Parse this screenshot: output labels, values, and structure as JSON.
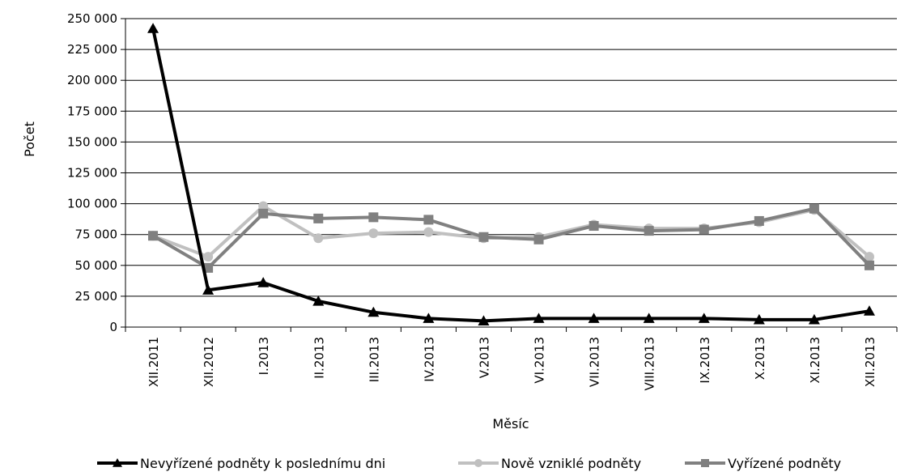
{
  "chart_data": {
    "type": "line",
    "xlabel": "Měsíc",
    "ylabel": "Počet",
    "ylim": [
      0,
      250000
    ],
    "y_ticks": [
      0,
      25000,
      50000,
      75000,
      100000,
      125000,
      150000,
      175000,
      200000,
      225000,
      250000
    ],
    "y_tick_labels": [
      "0",
      "25 000",
      "50 000",
      "75 000",
      "100 000",
      "125 000",
      "150 000",
      "175 000",
      "200 000",
      "225 000",
      "250 000"
    ],
    "grid": true,
    "legend": "bottom",
    "categories": [
      "XII.2011",
      "XII.2012",
      "I.2013",
      "II.2013",
      "III.2013",
      "IV.2013",
      "V.2013",
      "VI.2013",
      "VII.2013",
      "VIII.2013",
      "IX.2013",
      "X.2013",
      "XI.2013",
      "XII.2013"
    ],
    "series": [
      {
        "name": "Nevyřízené podněty k poslednímu dni",
        "color": "#000000",
        "marker": "triangle",
        "values": [
          242000,
          30000,
          36000,
          21000,
          12000,
          7000,
          5000,
          7000,
          7000,
          7000,
          7000,
          6000,
          6000,
          13000
        ]
      },
      {
        "name": "Nově vzniklé podněty",
        "color": "#c0c0c0",
        "marker": "circle",
        "values": [
          74000,
          57000,
          98000,
          72000,
          76000,
          77000,
          72000,
          73000,
          83000,
          80000,
          80000,
          85000,
          95000,
          57000
        ]
      },
      {
        "name": "Vyřízené podněty",
        "color": "#808080",
        "marker": "square",
        "values": [
          74000,
          48000,
          92000,
          88000,
          89000,
          87000,
          73000,
          71000,
          82000,
          78000,
          79000,
          86000,
          96000,
          50000
        ]
      }
    ]
  }
}
